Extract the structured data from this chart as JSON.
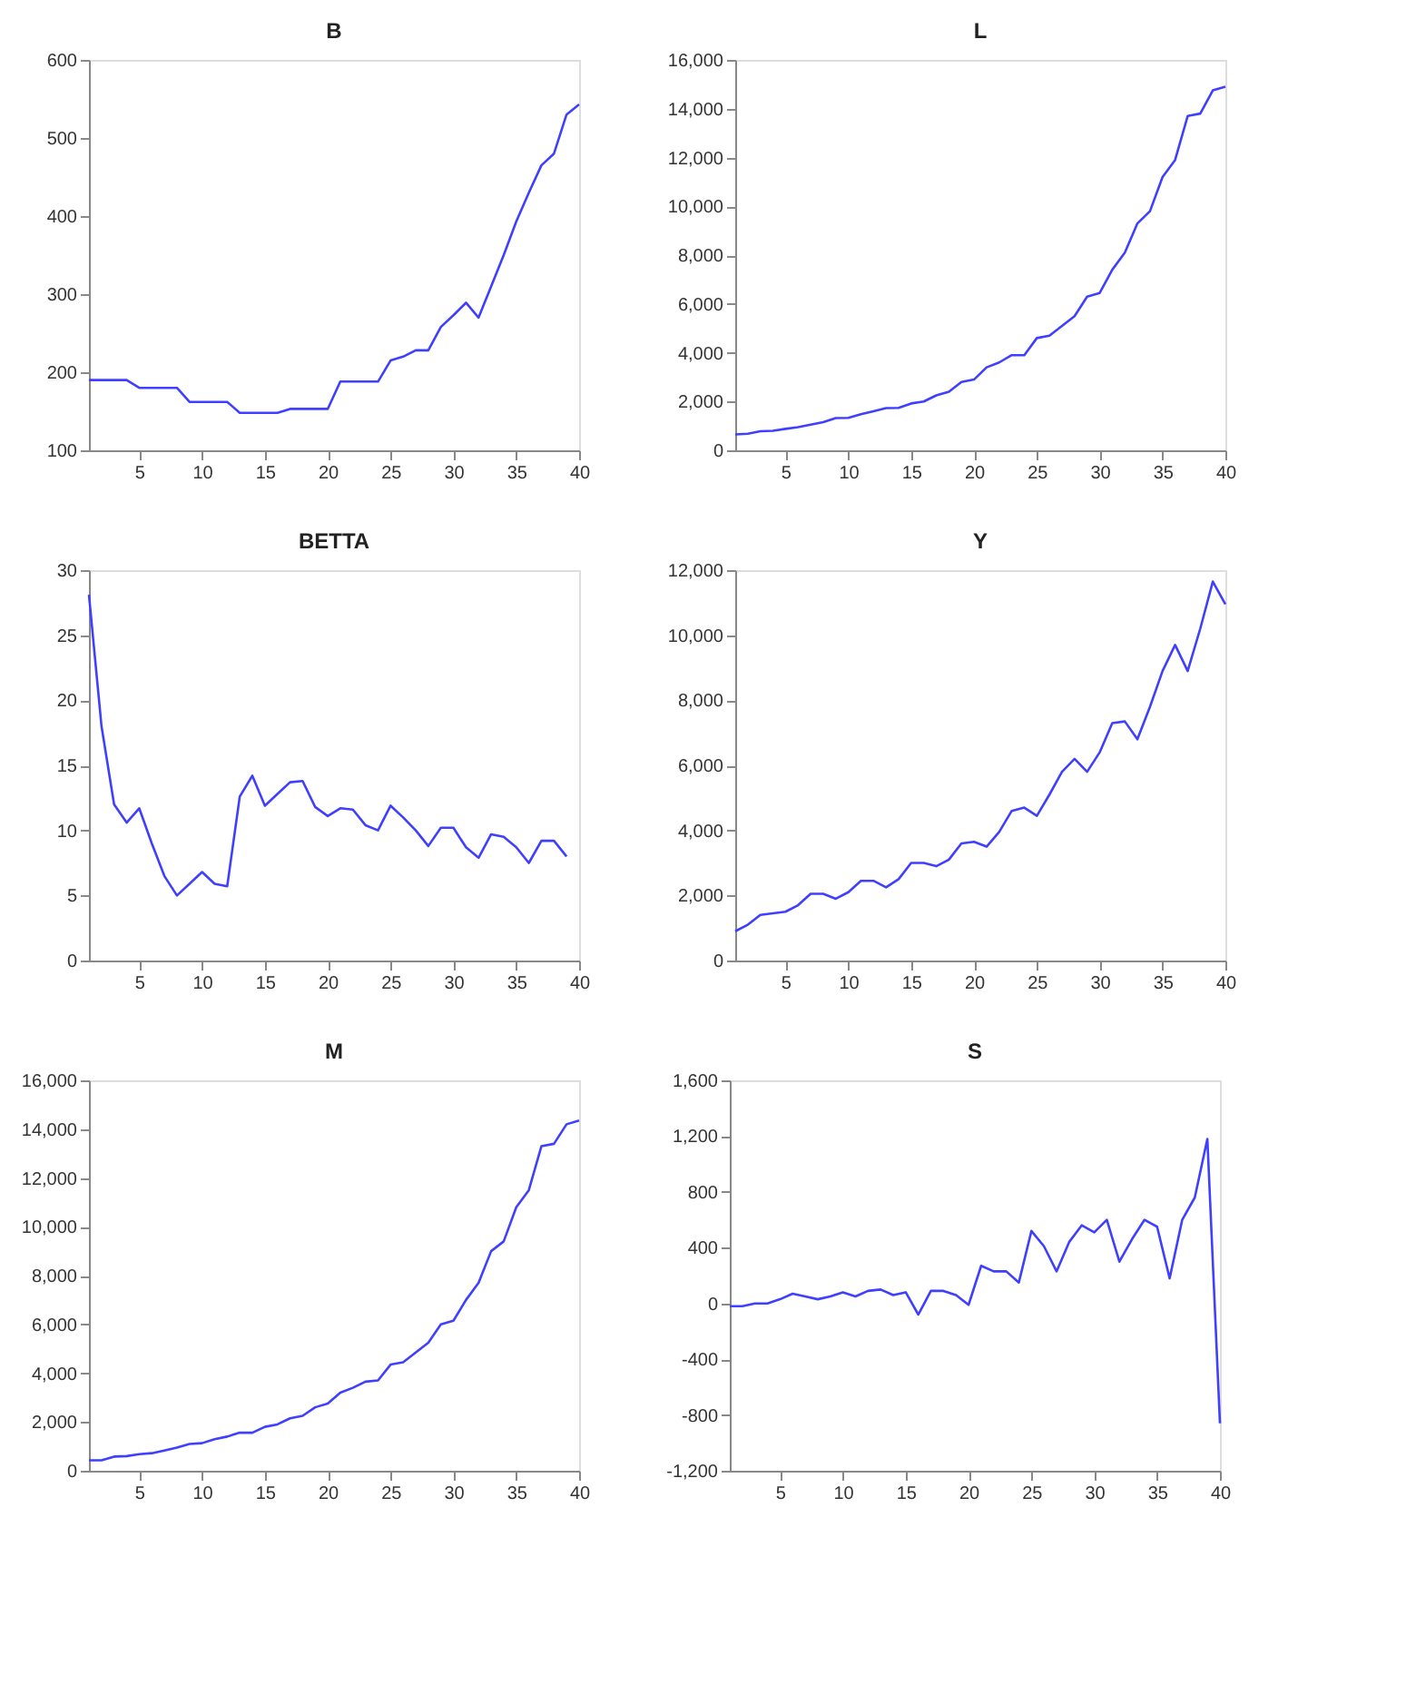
{
  "chart_data": [
    {
      "type": "line",
      "title": "B",
      "color": "#3f3fff",
      "grid": false,
      "xlim": [
        1,
        40
      ],
      "xticks": [
        5,
        10,
        15,
        20,
        25,
        30,
        35,
        40
      ],
      "ylim": [
        100,
        600
      ],
      "yticks": [
        100,
        200,
        300,
        400,
        500,
        600
      ],
      "x": [
        1,
        2,
        3,
        4,
        5,
        6,
        7,
        8,
        9,
        10,
        11,
        12,
        13,
        14,
        15,
        16,
        17,
        18,
        19,
        20,
        21,
        22,
        23,
        24,
        25,
        26,
        27,
        28,
        29,
        30,
        31,
        32,
        33,
        34,
        35,
        36,
        37,
        38,
        39,
        40
      ],
      "values": [
        190,
        190,
        190,
        190,
        180,
        180,
        180,
        180,
        162,
        162,
        162,
        162,
        148,
        148,
        148,
        148,
        153,
        153,
        153,
        153,
        188,
        188,
        188,
        188,
        215,
        220,
        228,
        228,
        258,
        273,
        289,
        270,
        310,
        350,
        393,
        430,
        465,
        480,
        530,
        543
      ]
    },
    {
      "type": "line",
      "title": "L",
      "color": "#3f3fff",
      "grid": false,
      "xlim": [
        1,
        40
      ],
      "xticks": [
        5,
        10,
        15,
        20,
        25,
        30,
        35,
        40
      ],
      "ylim": [
        0,
        16000
      ],
      "yticks": [
        0,
        {
          "value": 2000,
          "label": "2,000"
        },
        {
          "value": 4000,
          "label": "4,000"
        },
        {
          "value": 6000,
          "label": "6,000"
        },
        {
          "value": 8000,
          "label": "8,000"
        },
        {
          "value": 10000,
          "label": "10,000"
        },
        {
          "value": 12000,
          "label": "12,000"
        },
        {
          "value": 14000,
          "label": "14,000"
        },
        {
          "value": 16000,
          "label": "16,000"
        }
      ],
      "x": [
        1,
        2,
        3,
        4,
        5,
        6,
        7,
        8,
        9,
        10,
        11,
        12,
        13,
        14,
        15,
        16,
        17,
        18,
        19,
        20,
        21,
        22,
        23,
        24,
        25,
        26,
        27,
        28,
        29,
        30,
        31,
        32,
        33,
        34,
        35,
        36,
        37,
        38,
        39,
        40
      ],
      "values": [
        650,
        680,
        780,
        800,
        880,
        950,
        1050,
        1150,
        1320,
        1330,
        1480,
        1600,
        1730,
        1740,
        1920,
        2000,
        2250,
        2400,
        2800,
        2900,
        3400,
        3600,
        3900,
        3900,
        4600,
        4700,
        5100,
        5500,
        6300,
        6450,
        7400,
        8100,
        9300,
        9800,
        11200,
        11900,
        13700,
        13800,
        14750,
        14900
      ]
    },
    {
      "type": "line",
      "title": "BETTA",
      "color": "#3f3fff",
      "grid": false,
      "xlim": [
        1,
        40
      ],
      "xticks": [
        5,
        10,
        15,
        20,
        25,
        30,
        35,
        40
      ],
      "ylim": [
        0,
        30
      ],
      "yticks": [
        0,
        5,
        10,
        15,
        20,
        25,
        30
      ],
      "x": [
        1,
        2,
        3,
        4,
        5,
        6,
        7,
        8,
        9,
        10,
        11,
        12,
        13,
        14,
        15,
        16,
        17,
        18,
        19,
        20,
        21,
        22,
        23,
        24,
        25,
        26,
        27,
        28,
        29,
        30,
        31,
        32,
        33,
        34,
        35,
        36,
        37,
        38,
        39
      ],
      "values": [
        28.1,
        18,
        12,
        10.6,
        11.7,
        9,
        6.5,
        5,
        5.9,
        6.8,
        5.9,
        5.7,
        12.6,
        14.2,
        11.9,
        12.8,
        13.7,
        13.8,
        11.8,
        11.1,
        11.7,
        11.6,
        10.4,
        10,
        11.9,
        11,
        10,
        8.8,
        10.2,
        10.2,
        8.7,
        7.9,
        9.7,
        9.5,
        8.7,
        7.5,
        9.2,
        9.2,
        8
      ]
    },
    {
      "type": "line",
      "title": "Y",
      "color": "#3f3fff",
      "grid": false,
      "xlim": [
        1,
        40
      ],
      "xticks": [
        5,
        10,
        15,
        20,
        25,
        30,
        35,
        40
      ],
      "ylim": [
        0,
        12000
      ],
      "yticks": [
        0,
        {
          "value": 2000,
          "label": "2,000"
        },
        {
          "value": 4000,
          "label": "4,000"
        },
        {
          "value": 6000,
          "label": "6,000"
        },
        {
          "value": 8000,
          "label": "8,000"
        },
        {
          "value": 10000,
          "label": "10,000"
        },
        {
          "value": 12000,
          "label": "12,000"
        }
      ],
      "x": [
        1,
        2,
        3,
        4,
        5,
        6,
        7,
        8,
        9,
        10,
        11,
        12,
        13,
        14,
        15,
        16,
        17,
        18,
        19,
        20,
        21,
        22,
        23,
        24,
        25,
        26,
        27,
        28,
        29,
        30,
        31,
        32,
        33,
        34,
        35,
        36,
        37,
        38,
        39,
        40
      ],
      "values": [
        900,
        1100,
        1400,
        1450,
        1500,
        1700,
        2050,
        2050,
        1900,
        2100,
        2450,
        2450,
        2250,
        2500,
        3000,
        3000,
        2900,
        3100,
        3600,
        3650,
        3500,
        3950,
        4600,
        4700,
        4450,
        5100,
        5800,
        6200,
        5800,
        6400,
        7300,
        7350,
        6800,
        7800,
        8900,
        9700,
        8900,
        10200,
        11650,
        10950
      ]
    },
    {
      "type": "line",
      "title": "M",
      "color": "#3f3fff",
      "grid": false,
      "xlim": [
        1,
        40
      ],
      "xticks": [
        5,
        10,
        15,
        20,
        25,
        30,
        35,
        40
      ],
      "ylim": [
        0,
        16000
      ],
      "yticks": [
        0,
        {
          "value": 2000,
          "label": "2,000"
        },
        {
          "value": 4000,
          "label": "4,000"
        },
        {
          "value": 6000,
          "label": "6,000"
        },
        {
          "value": 8000,
          "label": "8,000"
        },
        {
          "value": 10000,
          "label": "10,000"
        },
        {
          "value": 12000,
          "label": "12,000"
        },
        {
          "value": 14000,
          "label": "14,000"
        },
        {
          "value": 16000,
          "label": "16,000"
        }
      ],
      "x": [
        1,
        2,
        3,
        4,
        5,
        6,
        7,
        8,
        9,
        10,
        11,
        12,
        13,
        14,
        15,
        16,
        17,
        18,
        19,
        20,
        21,
        22,
        23,
        24,
        25,
        26,
        27,
        28,
        29,
        30,
        31,
        32,
        33,
        34,
        35,
        36,
        37,
        38,
        39,
        40
      ],
      "values": [
        430,
        430,
        580,
        600,
        680,
        720,
        830,
        950,
        1100,
        1130,
        1290,
        1400,
        1560,
        1560,
        1800,
        1900,
        2150,
        2250,
        2600,
        2750,
        3200,
        3400,
        3650,
        3700,
        4350,
        4450,
        4850,
        5250,
        6000,
        6150,
        7000,
        7700,
        9000,
        9400,
        10800,
        11500,
        13300,
        13400,
        14200,
        14350
      ]
    },
    {
      "type": "line",
      "title": "S",
      "color": "#3f3fff",
      "grid": false,
      "xlim": [
        1,
        40
      ],
      "xticks": [
        5,
        10,
        15,
        20,
        25,
        30,
        35,
        40
      ],
      "ylim": [
        -1200,
        1600
      ],
      "yticks": [
        {
          "value": -1200,
          "label": "-1,200"
        },
        -800,
        -400,
        0,
        400,
        800,
        {
          "value": 1200,
          "label": "1,200"
        },
        {
          "value": 1600,
          "label": "1,600"
        }
      ],
      "x": [
        1,
        2,
        3,
        4,
        5,
        6,
        7,
        8,
        9,
        10,
        11,
        12,
        13,
        14,
        15,
        16,
        17,
        18,
        19,
        20,
        21,
        22,
        23,
        24,
        25,
        26,
        27,
        28,
        29,
        30,
        31,
        32,
        33,
        34,
        35,
        36,
        37,
        38,
        39,
        40
      ],
      "values": [
        -20,
        -20,
        0,
        0,
        30,
        70,
        50,
        30,
        50,
        80,
        50,
        90,
        100,
        60,
        80,
        -80,
        90,
        90,
        60,
        -10,
        270,
        230,
        230,
        150,
        520,
        410,
        230,
        440,
        560,
        510,
        600,
        300,
        460,
        600,
        550,
        180,
        600,
        760,
        1180,
        -860
      ]
    }
  ]
}
